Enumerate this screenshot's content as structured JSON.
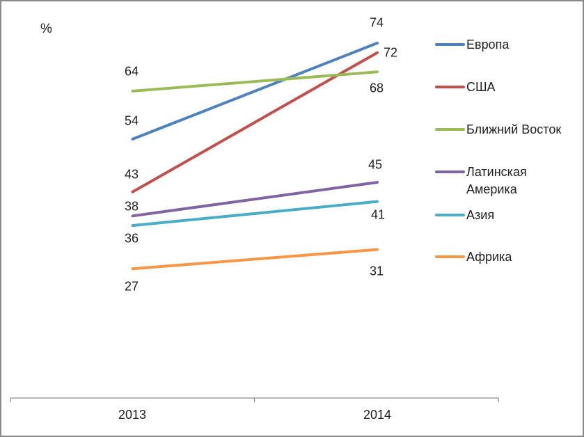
{
  "chart_data": {
    "type": "line",
    "title": "",
    "ylabel": "%",
    "xlabel": "",
    "x": [
      "2013",
      "2014"
    ],
    "series": [
      {
        "name": "Европа",
        "values": [
          54,
          74
        ],
        "color": "#4F81BD"
      },
      {
        "name": "США",
        "values": [
          43,
          72
        ],
        "color": "#C0504D"
      },
      {
        "name": "Ближний Восток",
        "values": [
          64,
          68
        ],
        "color": "#9BBB59"
      },
      {
        "name": "Латинская Америка",
        "values": [
          38,
          45
        ],
        "color": "#8064A2"
      },
      {
        "name": "Азия",
        "values": [
          36,
          41
        ],
        "color": "#4BACC6"
      },
      {
        "name": "Африка",
        "values": [
          27,
          31
        ],
        "color": "#F79646"
      }
    ],
    "data_labels": true,
    "grid": false,
    "y_axis_visible": false,
    "legend_position": "right",
    "ylim": [
      0,
      80
    ],
    "axis_color": "#8C8C8C"
  }
}
